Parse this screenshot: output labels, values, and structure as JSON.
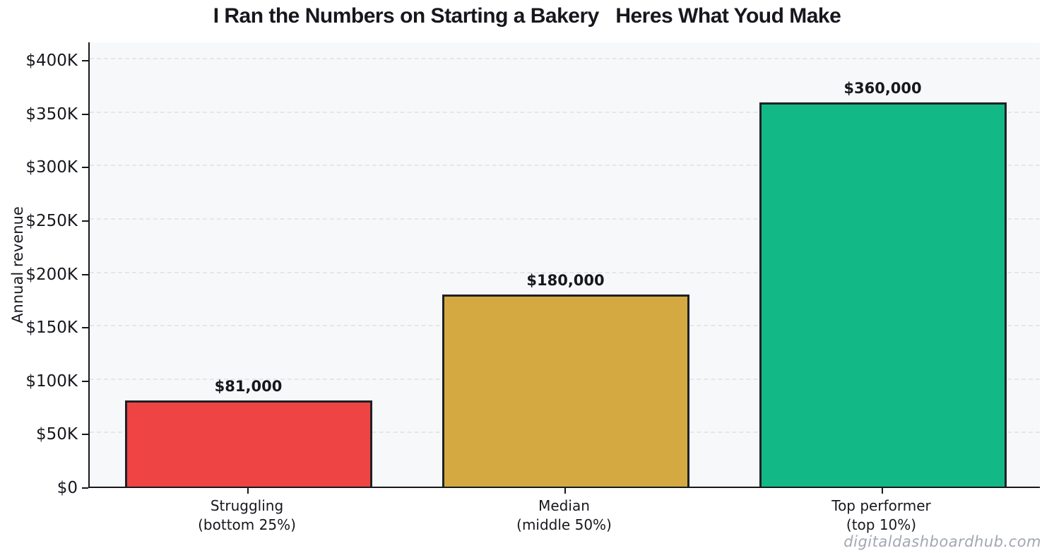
{
  "title": "I Ran the Numbers on Starting a Bakery   Heres What Youd Make",
  "watermark": "digitaldashboardhub.com",
  "chart_data": {
    "type": "bar",
    "title": "I Ran the Numbers on Starting a Bakery   Heres What Youd Make",
    "xlabel": "",
    "ylabel": "Annual revenue",
    "ylim": [
      0,
      400000
    ],
    "grid": "horizontal-dashed",
    "legend": "none",
    "categories": [
      {
        "line1": "Struggling",
        "line2": "(bottom 25%)"
      },
      {
        "line1": "Median",
        "line2": "(middle 50%)"
      },
      {
        "line1": "Top performer",
        "line2": "(top 10%)"
      }
    ],
    "values": [
      81000,
      180000,
      360000
    ],
    "value_labels": [
      "$81,000",
      "$180,000",
      "$360,000"
    ],
    "bar_colors": [
      "#EF4444",
      "#D4A942",
      "#12B886"
    ],
    "bar_edge_color": "#1e2126",
    "ytick_values": [
      0,
      50000,
      100000,
      150000,
      200000,
      250000,
      300000,
      350000,
      400000
    ],
    "ytick_labels": [
      "$0",
      "$50K",
      "$100K",
      "$150K",
      "$200K",
      "$250K",
      "$300K",
      "$350K",
      "$400K"
    ],
    "plot_background": "#f7f8fa",
    "grid_color": "#e4e6ea",
    "axis_color": "#16181d"
  }
}
